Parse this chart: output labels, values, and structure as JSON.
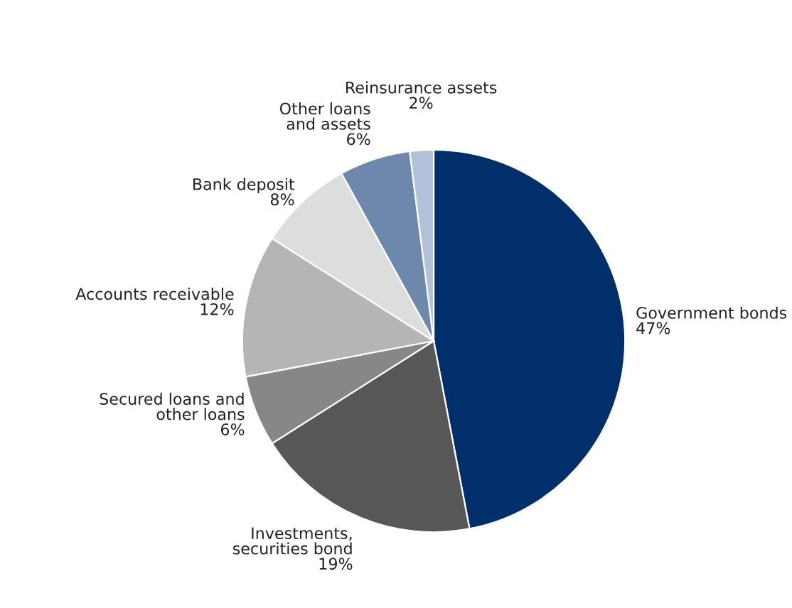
{
  "chart_data": {
    "type": "pie",
    "categories": [
      "Government bonds",
      "Investments,\nsecurities bond",
      "Secured loans and\nother loans",
      "Accounts receivable",
      "Bank deposit",
      "Other loans\nand assets",
      "Reinsurance assets"
    ],
    "values": [
      47,
      19,
      6,
      12,
      8,
      6,
      2
    ],
    "colors": [
      "#002f6c",
      "#575757",
      "#878787",
      "#b5b5b5",
      "#dcdddd",
      "#6e88ad",
      "#b3c1da"
    ],
    "value_labels": [
      "47%",
      "19%",
      "6%",
      "12%",
      "8%",
      "6%",
      "2%"
    ]
  }
}
